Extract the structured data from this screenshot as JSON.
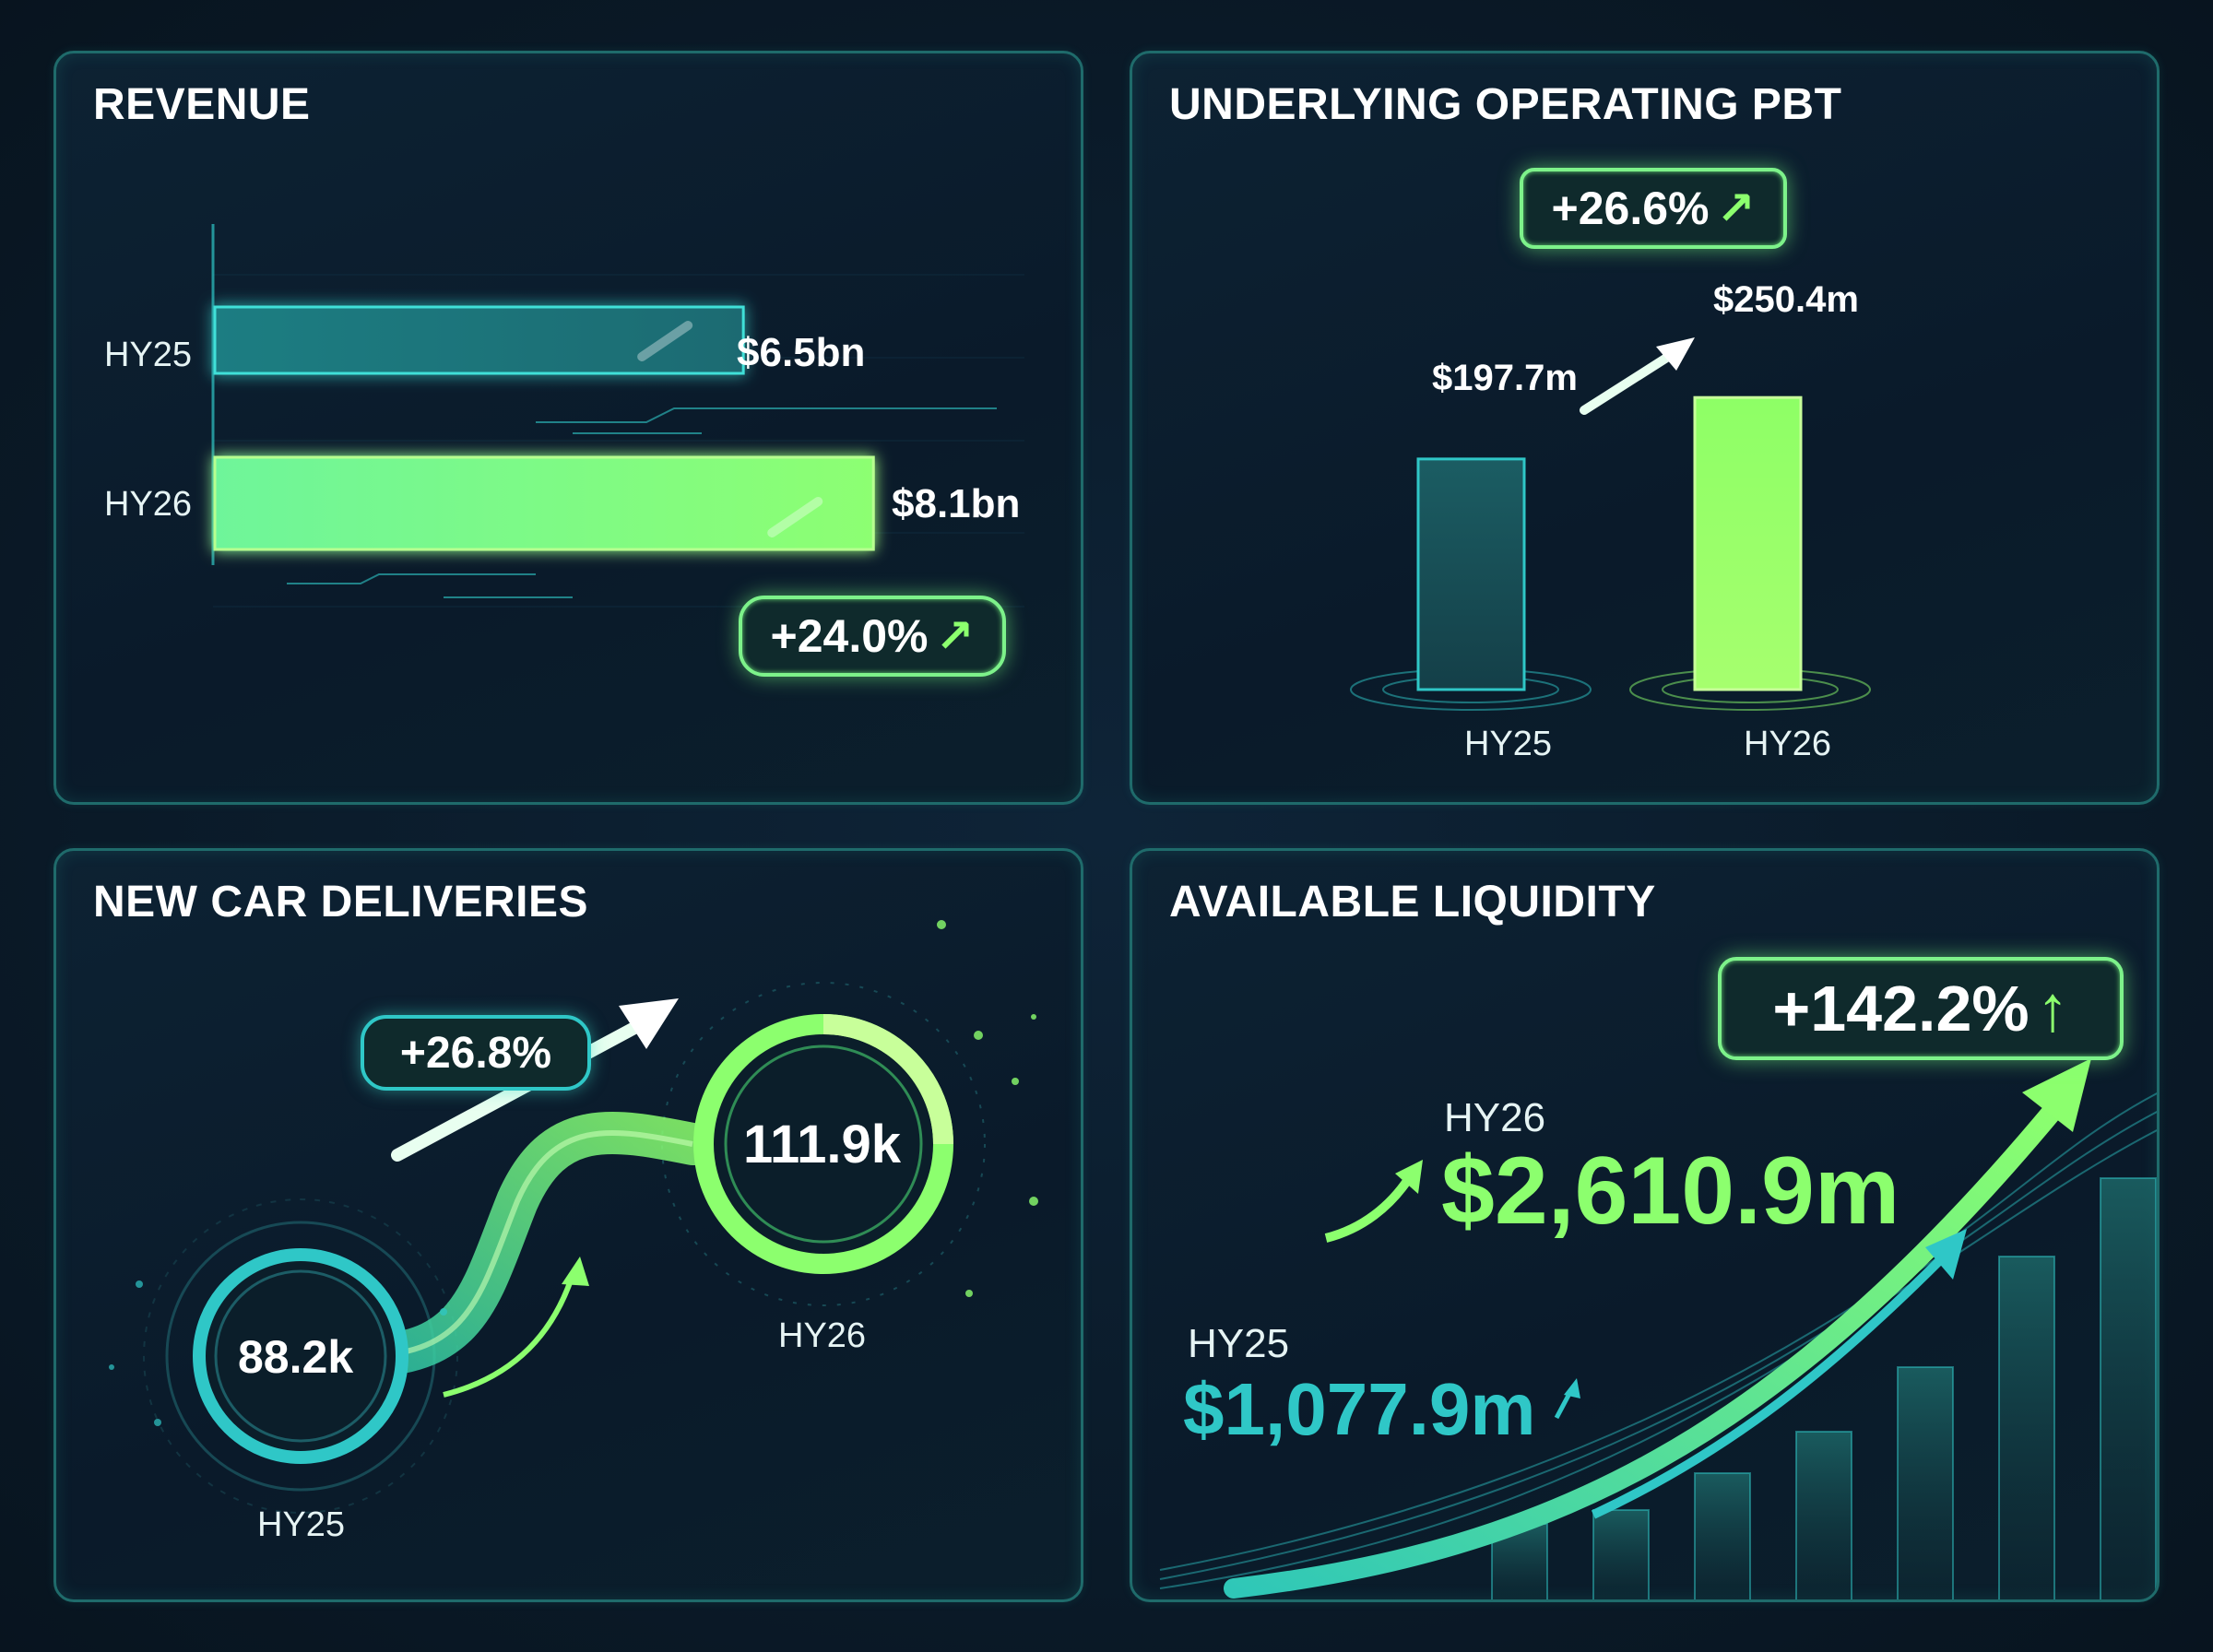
{
  "colors": {
    "accent_green": "#8cff6e",
    "accent_teal": "#2fc7c7",
    "dark_teal": "#15525a",
    "bg": "#0a1a2a"
  },
  "chart_data": [
    {
      "type": "bar",
      "orientation": "horizontal",
      "title": "REVENUE",
      "categories": [
        "HY25",
        "HY26"
      ],
      "values": [
        6.5,
        8.1
      ],
      "value_labels": [
        "$6.5bn",
        "$8.1bn"
      ],
      "unit": "$bn",
      "change_label": "+24.0%",
      "xlim": [
        0,
        10
      ]
    },
    {
      "type": "bar",
      "title": "UNDERLYING OPERATING PBT",
      "categories": [
        "HY25",
        "HY26"
      ],
      "values": [
        197.7,
        250.4
      ],
      "value_labels": [
        "$197.7m",
        "$250.4m"
      ],
      "unit": "$m",
      "change_label": "+26.6%",
      "ylim": [
        0,
        350
      ]
    },
    {
      "type": "other",
      "title": "NEW CAR DELIVERIES",
      "categories": [
        "HY25",
        "HY26"
      ],
      "values": [
        88.2,
        111.9
      ],
      "value_labels": [
        "88.2k",
        "111.9k"
      ],
      "unit": "k",
      "change_label": "+26.8%"
    },
    {
      "type": "other",
      "title": "AVAILABLE LIQUIDITY",
      "categories": [
        "HY25",
        "HY26"
      ],
      "values": [
        1077.9,
        2610.9
      ],
      "value_labels": [
        "$1,077.9m",
        "$2,610.9m"
      ],
      "unit": "$m",
      "change_label": "+142.2%"
    }
  ]
}
